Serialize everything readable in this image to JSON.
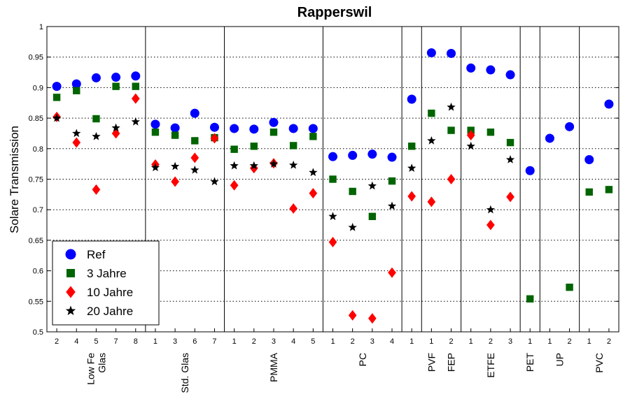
{
  "chart_data": {
    "type": "scatter",
    "title": "Rapperswil",
    "ylabel": "Solare Transmission",
    "xlabel": "",
    "ylim": [
      0.5,
      1.0
    ],
    "yticks": [
      0.5,
      0.55,
      0.6,
      0.65,
      0.7,
      0.75,
      0.8,
      0.85,
      0.9,
      0.95,
      1
    ],
    "ytick_labels": [
      "0.5",
      "0.55",
      "0.6",
      "0.65",
      "0.7",
      "0.75",
      "0.8",
      "0.85",
      "0.9",
      "0.95",
      "1"
    ],
    "grid": "horizontal-dotted",
    "legend_position": "bottom-left",
    "x": [
      "2",
      "4",
      "5",
      "7",
      "8",
      "1",
      "3",
      "6",
      "7",
      "1",
      "2",
      "3",
      "4",
      "5",
      "1",
      "2",
      "3",
      "4",
      "1",
      "1",
      "2",
      "1",
      "2",
      "3",
      "1",
      "1",
      "2",
      "1",
      "2"
    ],
    "groups": [
      {
        "label": "Low Fe Glas",
        "count": 5
      },
      {
        "label": "Std. Glas",
        "count": 4
      },
      {
        "label": "PMMA",
        "count": 5
      },
      {
        "label": "PC",
        "count": 4
      },
      {
        "label": "",
        "count": 1
      },
      {
        "label": "PVF",
        "count": 1
      },
      {
        "label": "FEP",
        "count": 1
      },
      {
        "label": "ETFE",
        "count": 3
      },
      {
        "label": "PET",
        "count": 1
      },
      {
        "label": "UP",
        "count": 2
      },
      {
        "label": "PVC",
        "count": 2
      }
    ],
    "dividers_after": [
      5,
      9,
      14,
      18,
      19,
      21,
      24,
      25,
      27
    ],
    "series": [
      {
        "name": "Ref",
        "marker": "circle",
        "color": "#0000ff",
        "values": [
          0.902,
          0.906,
          0.916,
          0.917,
          0.919,
          0.84,
          0.834,
          0.858,
          0.835,
          0.833,
          0.832,
          0.843,
          0.833,
          0.833,
          0.787,
          0.789,
          0.791,
          0.786,
          0.881,
          0.957,
          0.956,
          0.932,
          0.929,
          0.921,
          0.764,
          0.817,
          0.836,
          0.782,
          0.873
        ]
      },
      {
        "name": "3 Jahre",
        "marker": "square",
        "color": "#006400",
        "values": [
          0.884,
          0.895,
          0.849,
          0.902,
          0.902,
          0.827,
          0.822,
          0.813,
          0.818,
          0.799,
          0.804,
          0.827,
          0.805,
          0.82,
          0.75,
          0.73,
          0.689,
          0.747,
          0.804,
          0.858,
          0.83,
          0.83,
          0.827,
          0.81,
          0.554,
          null,
          0.573,
          0.729,
          0.733
        ]
      },
      {
        "name": "10 Jahre",
        "marker": "diamond",
        "color": "#ff0000",
        "values": [
          0.852,
          0.81,
          0.733,
          0.825,
          0.882,
          0.774,
          0.746,
          0.785,
          0.817,
          0.74,
          0.768,
          0.776,
          0.702,
          0.727,
          0.647,
          0.527,
          0.522,
          0.597,
          0.722,
          0.713,
          0.75,
          0.822,
          0.675,
          0.721,
          null,
          null,
          null,
          null,
          null
        ]
      },
      {
        "name": "20 Jahre",
        "marker": "star",
        "color": "#000000",
        "values": [
          0.85,
          0.825,
          0.82,
          0.834,
          0.844,
          0.769,
          0.771,
          0.765,
          0.746,
          0.772,
          0.772,
          0.775,
          0.773,
          0.761,
          0.689,
          0.671,
          0.739,
          0.706,
          0.768,
          0.813,
          0.868,
          0.804,
          0.7,
          0.782,
          null,
          null,
          null,
          null,
          null
        ]
      }
    ]
  }
}
